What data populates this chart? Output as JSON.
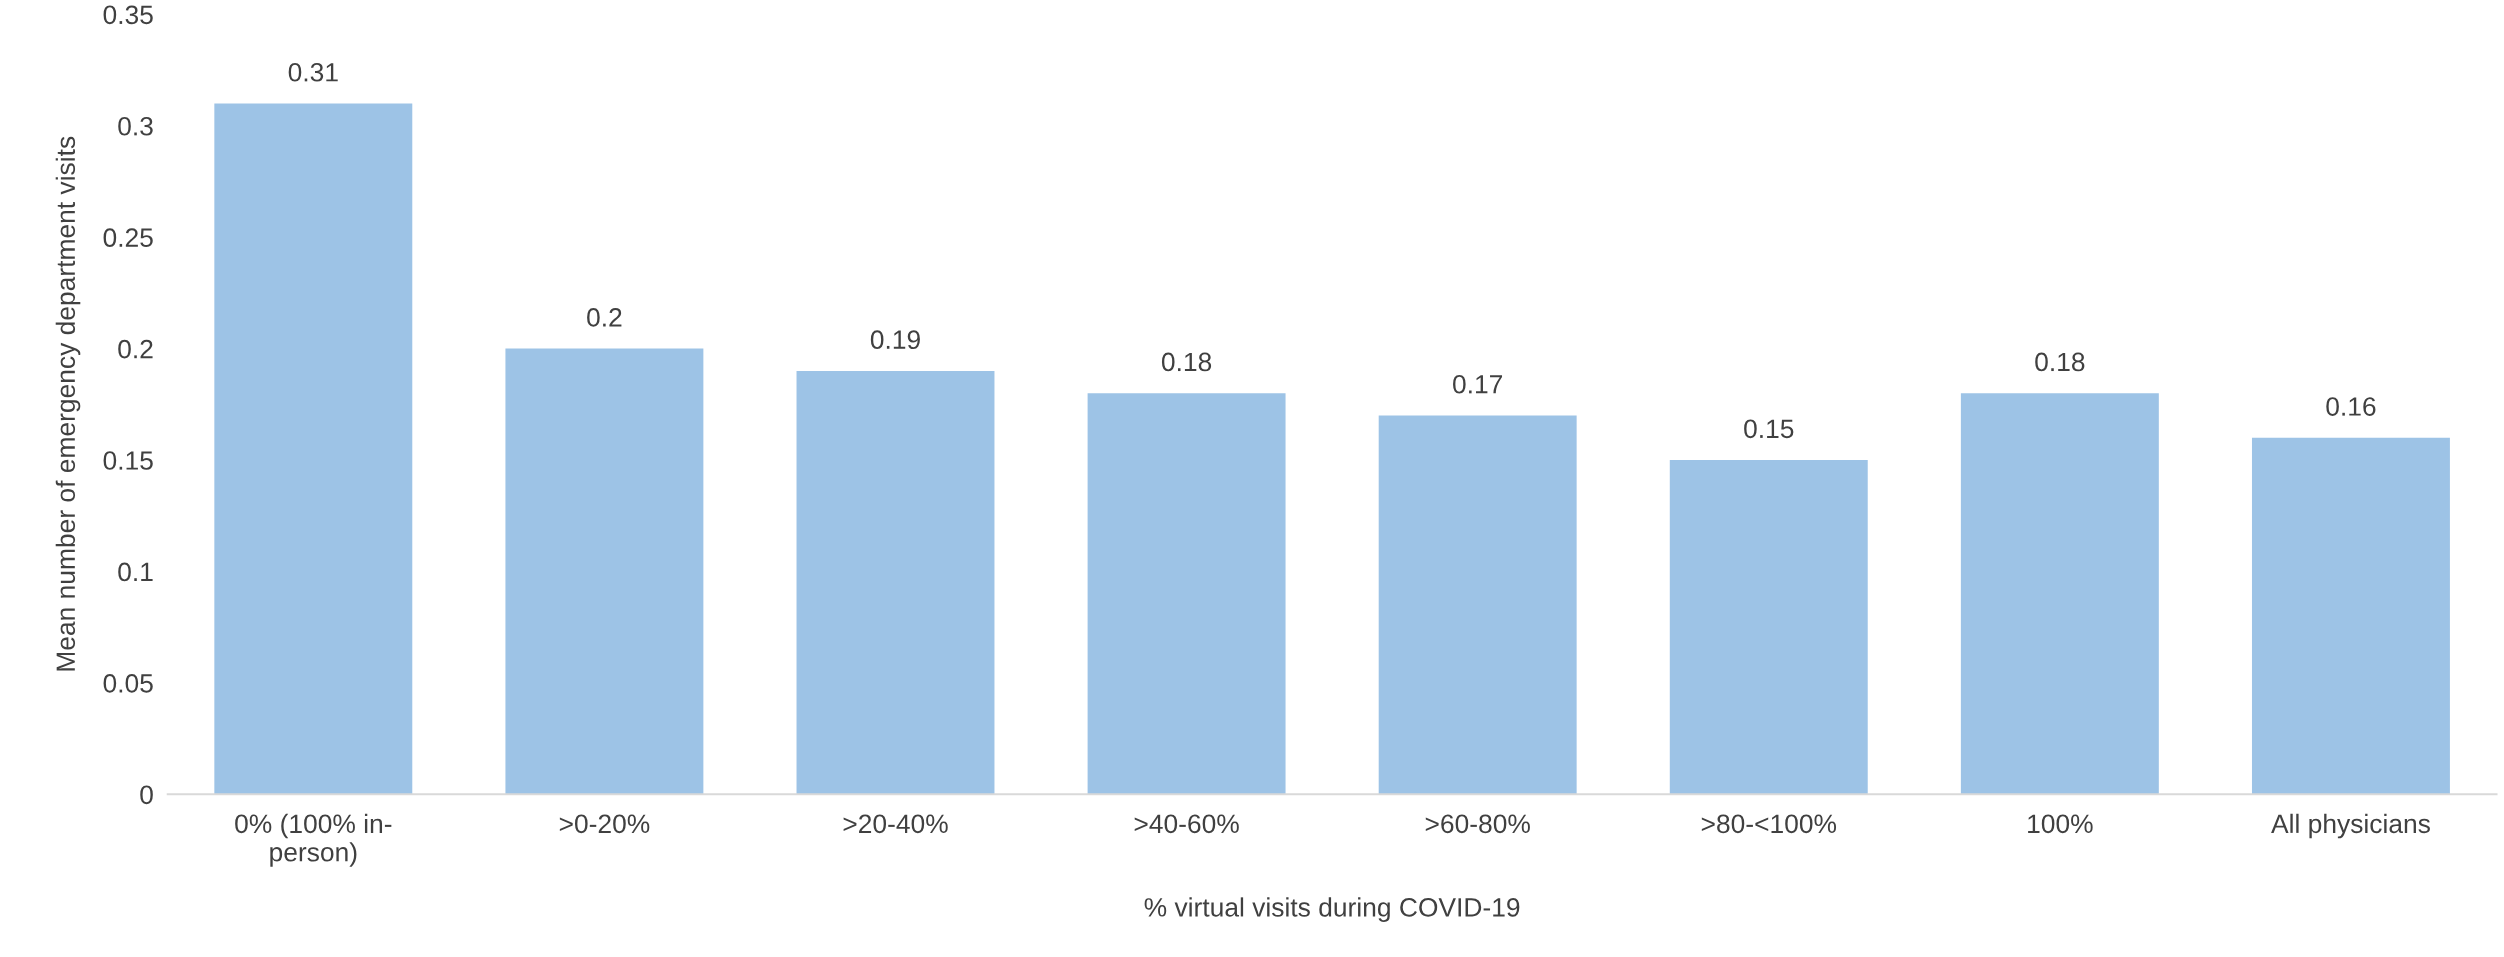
{
  "chart_data": {
    "type": "bar",
    "xlabel": "% virtual visits during COVID-19",
    "ylabel": "Mean number of emergency department visits",
    "categories": [
      "0% (100% in-\nperson)",
      ">0-20%",
      ">20-40%",
      ">40-60%",
      ">60-80%",
      ">80-<100%",
      "100%",
      "All physicians"
    ],
    "values": [
      0.31,
      0.2,
      0.19,
      0.18,
      0.17,
      0.15,
      0.18,
      0.16
    ],
    "color": "#9dc3e6",
    "ylim": [
      0,
      0.35
    ],
    "yticks": [
      0,
      0.05,
      0.1,
      0.15,
      0.2,
      0.25,
      0.3,
      0.35
    ],
    "data_labels": true,
    "grid": false,
    "legend": false
  }
}
